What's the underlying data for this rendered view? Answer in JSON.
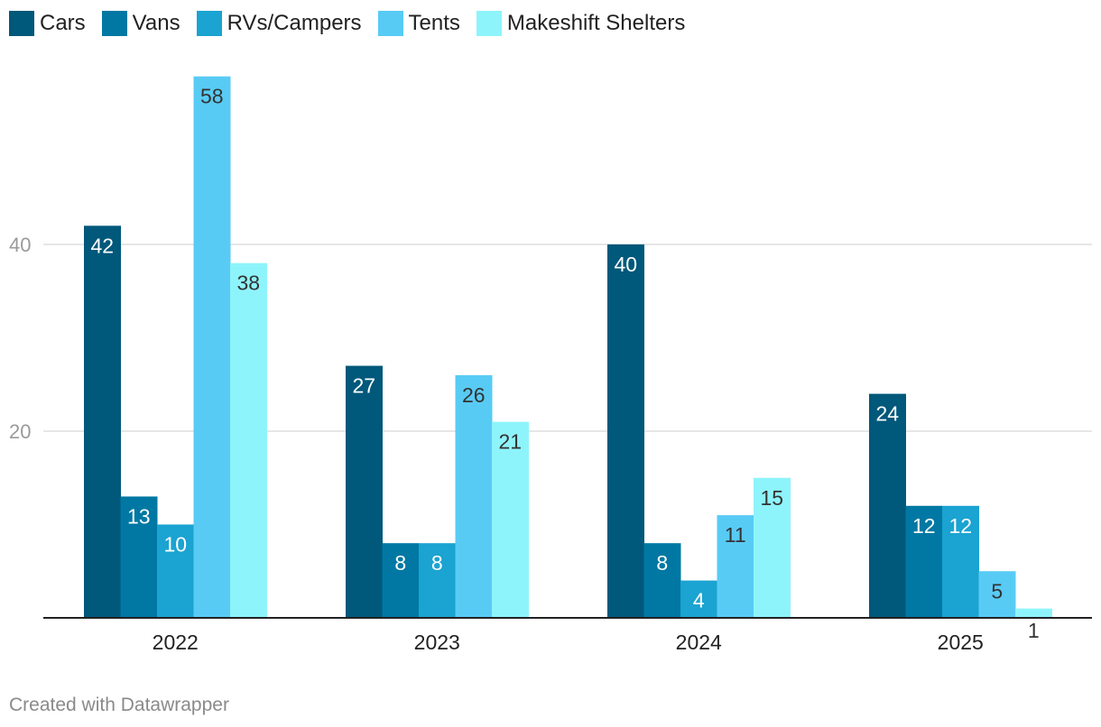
{
  "chart_data": {
    "type": "bar",
    "categories": [
      "2022",
      "2023",
      "2024",
      "2025"
    ],
    "series": [
      {
        "name": "Cars",
        "color": "#00587a",
        "values": [
          42,
          27,
          40,
          24
        ]
      },
      {
        "name": "Vans",
        "color": "#0078a3",
        "values": [
          13,
          8,
          8,
          12
        ]
      },
      {
        "name": "RVs/Campers",
        "color": "#1ba3d1",
        "values": [
          10,
          8,
          4,
          12
        ]
      },
      {
        "name": "Tents",
        "color": "#58cbf5",
        "values": [
          58,
          26,
          11,
          5
        ]
      },
      {
        "name": "Makeshift Shelters",
        "color": "#8ef4fb",
        "values": [
          38,
          21,
          15,
          1
        ]
      }
    ],
    "yticks": [
      20,
      40
    ],
    "ylim": [
      0,
      60
    ],
    "title": "",
    "xlabel": "",
    "ylabel": "",
    "grid": true,
    "legend": "top-left"
  },
  "footer": {
    "credit": "Created with Datawrapper"
  }
}
